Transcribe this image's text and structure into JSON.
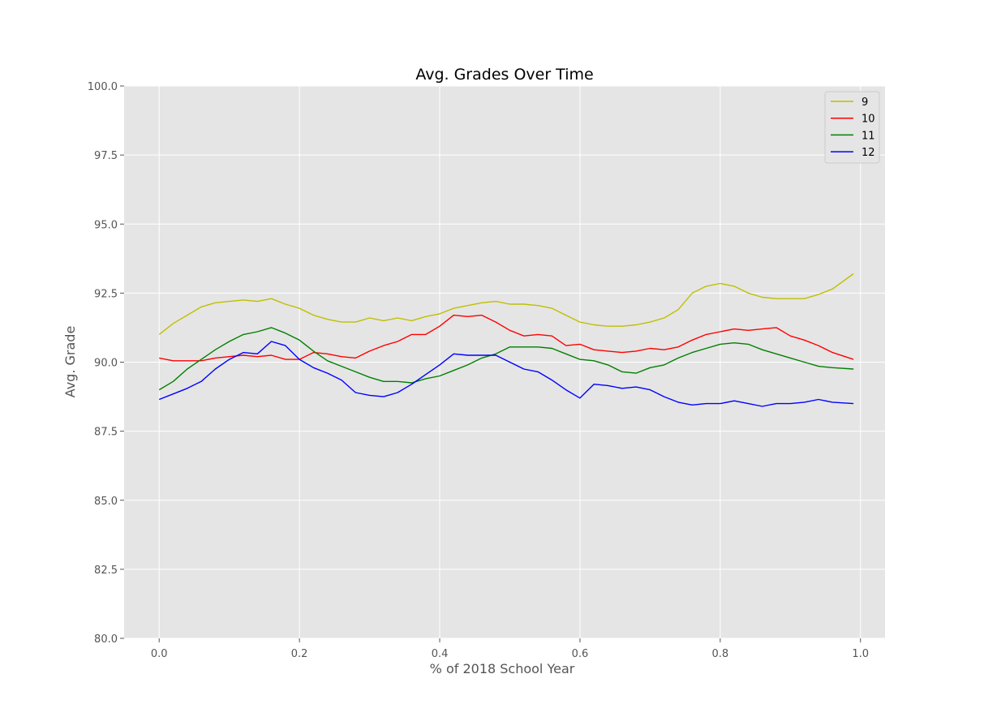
{
  "chart_data": {
    "type": "line",
    "title": "Avg. Grades Over Time",
    "xlabel": "% of 2018 School Year",
    "ylabel": "Avg. Grade",
    "xlim": [
      -0.05,
      1.035
    ],
    "ylim": [
      80.0,
      100.0
    ],
    "xticks": [
      0.0,
      0.2,
      0.4,
      0.6,
      0.8,
      1.0
    ],
    "xtick_labels": [
      "0.0",
      "0.2",
      "0.4",
      "0.6",
      "0.8",
      "1.0"
    ],
    "yticks": [
      80.0,
      82.5,
      85.0,
      87.5,
      90.0,
      92.5,
      95.0,
      97.5,
      100.0
    ],
    "ytick_labels": [
      "80.0",
      "82.5",
      "85.0",
      "87.5",
      "90.0",
      "92.5",
      "95.0",
      "97.5",
      "100.0"
    ],
    "grid": true,
    "plot_background": "#e5e5e5",
    "legend_position": "top-right",
    "x": [
      0.0,
      0.02,
      0.04,
      0.06,
      0.08,
      0.1,
      0.12,
      0.14,
      0.16,
      0.18,
      0.2,
      0.22,
      0.24,
      0.26,
      0.28,
      0.3,
      0.32,
      0.34,
      0.36,
      0.38,
      0.4,
      0.42,
      0.44,
      0.46,
      0.48,
      0.5,
      0.52,
      0.54,
      0.56,
      0.58,
      0.6,
      0.62,
      0.64,
      0.66,
      0.68,
      0.7,
      0.72,
      0.74,
      0.76,
      0.78,
      0.8,
      0.82,
      0.84,
      0.86,
      0.88,
      0.9,
      0.92,
      0.94,
      0.96,
      0.99
    ],
    "series": [
      {
        "name": "9",
        "color": "#bfbf00",
        "values": [
          91.0,
          91.4,
          91.7,
          92.0,
          92.15,
          92.2,
          92.25,
          92.2,
          92.3,
          92.1,
          91.95,
          91.7,
          91.55,
          91.45,
          91.45,
          91.6,
          91.5,
          91.6,
          91.5,
          91.65,
          91.75,
          91.95,
          92.05,
          92.15,
          92.2,
          92.1,
          92.1,
          92.05,
          91.95,
          91.7,
          91.45,
          91.35,
          91.3,
          91.3,
          91.35,
          91.45,
          91.6,
          91.9,
          92.5,
          92.75,
          92.85,
          92.75,
          92.5,
          92.35,
          92.3,
          92.3,
          92.3,
          92.45,
          92.65,
          93.2
        ]
      },
      {
        "name": "10",
        "color": "#ff0000",
        "values": [
          90.15,
          90.05,
          90.05,
          90.05,
          90.15,
          90.2,
          90.25,
          90.2,
          90.25,
          90.1,
          90.1,
          90.35,
          90.3,
          90.2,
          90.15,
          90.4,
          90.6,
          90.75,
          91.0,
          91.0,
          91.3,
          91.7,
          91.65,
          91.7,
          91.45,
          91.15,
          90.95,
          91.0,
          90.95,
          90.6,
          90.65,
          90.45,
          90.4,
          90.35,
          90.4,
          90.5,
          90.45,
          90.55,
          90.8,
          91.0,
          91.1,
          91.2,
          91.15,
          91.2,
          91.25,
          90.95,
          90.8,
          90.6,
          90.35,
          90.1
        ]
      },
      {
        "name": "11",
        "color": "#008000",
        "values": [
          89.0,
          89.3,
          89.75,
          90.1,
          90.45,
          90.75,
          91.0,
          91.1,
          91.25,
          91.05,
          90.8,
          90.4,
          90.05,
          89.85,
          89.65,
          89.45,
          89.3,
          89.3,
          89.25,
          89.4,
          89.5,
          89.7,
          89.9,
          90.15,
          90.3,
          90.55,
          90.55,
          90.55,
          90.5,
          90.3,
          90.1,
          90.05,
          89.9,
          89.65,
          89.6,
          89.8,
          89.9,
          90.15,
          90.35,
          90.5,
          90.65,
          90.7,
          90.65,
          90.45,
          90.3,
          90.15,
          90.0,
          89.85,
          89.8,
          89.75
        ]
      },
      {
        "name": "12",
        "color": "#0000ff",
        "values": [
          88.65,
          88.85,
          89.05,
          89.3,
          89.75,
          90.1,
          90.35,
          90.3,
          90.75,
          90.6,
          90.1,
          89.8,
          89.6,
          89.35,
          88.9,
          88.8,
          88.75,
          88.9,
          89.2,
          89.55,
          89.9,
          90.3,
          90.25,
          90.25,
          90.25,
          90.0,
          89.75,
          89.65,
          89.35,
          89.0,
          88.7,
          89.2,
          89.15,
          89.05,
          89.1,
          89.0,
          88.75,
          88.55,
          88.45,
          88.5,
          88.5,
          88.6,
          88.5,
          88.4,
          88.5,
          88.5,
          88.55,
          88.65,
          88.55,
          88.5
        ]
      }
    ]
  }
}
